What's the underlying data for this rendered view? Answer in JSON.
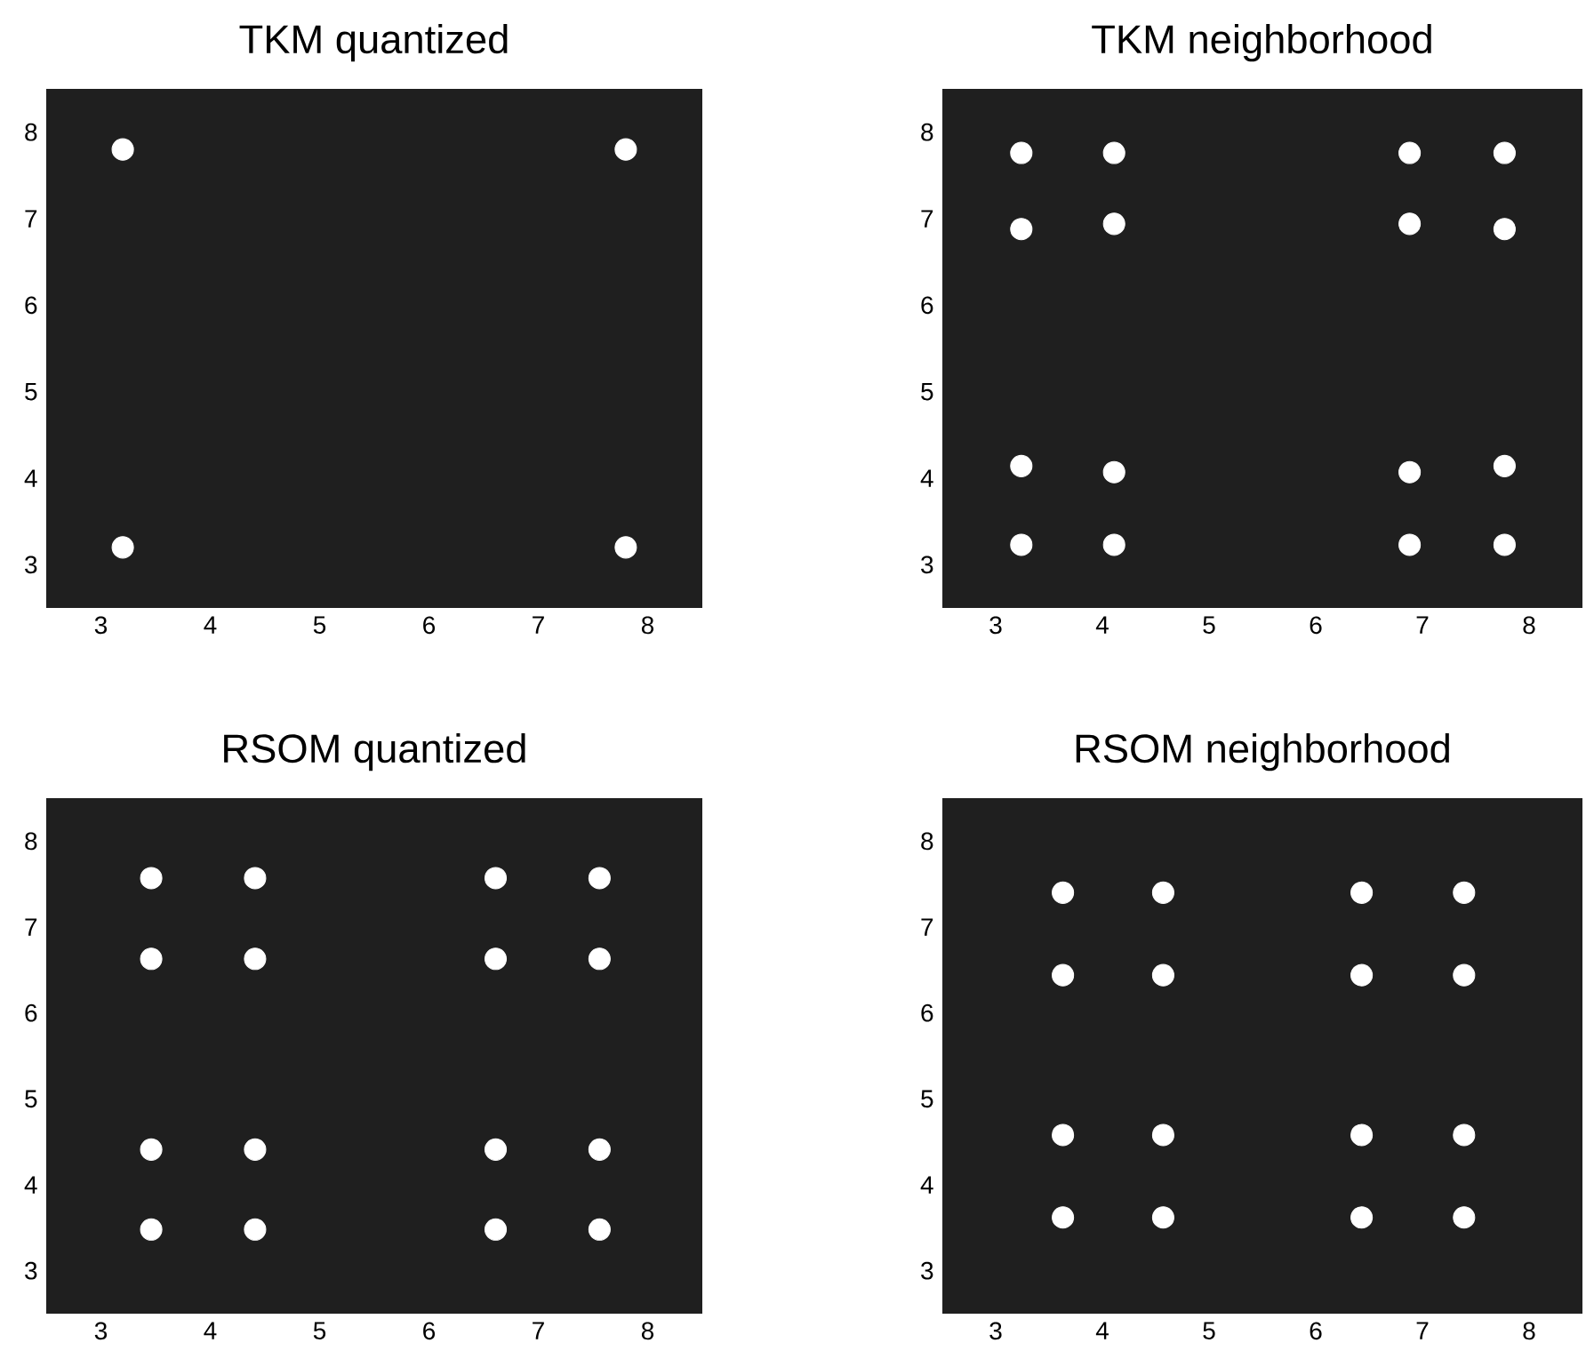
{
  "chart_data": [
    {
      "type": "scatter",
      "title": "TKM quantized",
      "marker": "circle",
      "color": "#ffffff",
      "xlim": [
        2.5,
        8.5
      ],
      "ylim": [
        2.5,
        8.5
      ],
      "xticks": [
        3,
        4,
        5,
        6,
        7,
        8
      ],
      "yticks": [
        3,
        4,
        5,
        6,
        7,
        8
      ],
      "x": [
        3.2,
        7.8,
        3.2,
        7.8
      ],
      "values": [
        7.8,
        7.8,
        3.2,
        3.2
      ]
    },
    {
      "type": "scatter",
      "title": "TKM neighborhood",
      "marker": "circle",
      "color": "#ffffff",
      "xlim": [
        2.5,
        8.5
      ],
      "ylim": [
        2.5,
        8.5
      ],
      "xticks": [
        3,
        4,
        5,
        6,
        7,
        8
      ],
      "yticks": [
        3,
        4,
        5,
        6,
        7,
        8
      ],
      "x": [
        3.24,
        4.11,
        6.88,
        7.77,
        3.24,
        4.11,
        6.88,
        7.77,
        3.24,
        4.11,
        6.88,
        7.77,
        3.24,
        4.11,
        6.88,
        7.77
      ],
      "values": [
        7.76,
        7.76,
        7.76,
        7.76,
        6.88,
        6.94,
        6.94,
        6.88,
        4.14,
        4.07,
        4.07,
        4.14,
        3.23,
        3.23,
        3.23,
        3.23
      ]
    },
    {
      "type": "scatter",
      "title": "RSOM quantized",
      "marker": "circle",
      "color": "#ffffff",
      "xlim": [
        2.5,
        8.5
      ],
      "ylim": [
        2.5,
        8.5
      ],
      "xticks": [
        3,
        4,
        5,
        6,
        7,
        8
      ],
      "yticks": [
        3,
        4,
        5,
        6,
        7,
        8
      ],
      "x": [
        3.46,
        4.41,
        6.61,
        7.56,
        3.46,
        4.41,
        6.61,
        7.56,
        3.46,
        4.41,
        6.61,
        7.56,
        3.46,
        4.41,
        6.61,
        7.56
      ],
      "values": [
        7.57,
        7.57,
        7.57,
        7.57,
        6.63,
        6.63,
        6.63,
        6.63,
        4.41,
        4.41,
        4.41,
        4.41,
        3.48,
        3.48,
        3.48,
        3.48
      ]
    },
    {
      "type": "scatter",
      "title": "RSOM neighborhood",
      "marker": "circle",
      "color": "#ffffff",
      "xlim": [
        2.5,
        8.5
      ],
      "ylim": [
        2.5,
        8.5
      ],
      "xticks": [
        3,
        4,
        5,
        6,
        7,
        8
      ],
      "yticks": [
        3,
        4,
        5,
        6,
        7,
        8
      ],
      "x": [
        3.63,
        4.57,
        6.43,
        7.39,
        3.63,
        4.57,
        6.43,
        7.39,
        3.63,
        4.57,
        6.43,
        7.39,
        3.63,
        4.57,
        6.43,
        7.39
      ],
      "values": [
        7.4,
        7.4,
        7.4,
        7.4,
        6.44,
        6.44,
        6.44,
        6.44,
        4.58,
        4.58,
        4.58,
        4.58,
        3.62,
        3.62,
        3.62,
        3.62
      ]
    }
  ]
}
